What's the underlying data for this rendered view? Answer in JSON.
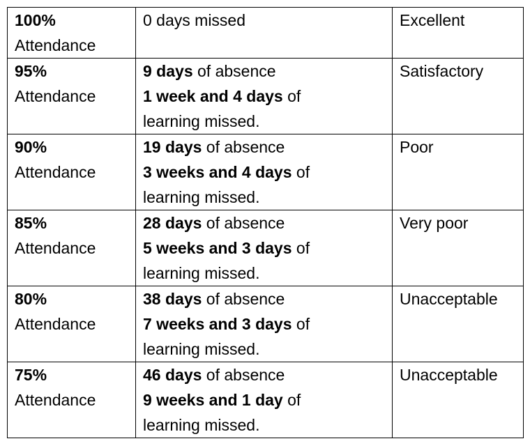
{
  "rows": [
    {
      "percent": "100%",
      "label": "Attendance",
      "days_text": "0 days missed",
      "rating": "Excellent"
    },
    {
      "percent": "95%",
      "label": "Attendance",
      "days_bold": "9 days",
      "days_rest": " of absence",
      "weeks_bold": "1 week and 4 days",
      "weeks_rest": " of",
      "tail": "learning missed.",
      "rating": "Satisfactory"
    },
    {
      "percent": "90%",
      "label": "Attendance",
      "days_bold": "19 days",
      "days_rest": " of absence",
      "weeks_bold": "3 weeks and 4 days",
      "weeks_rest": " of",
      "tail": "learning missed.",
      "rating": "Poor"
    },
    {
      "percent": "85%",
      "label": "Attendance",
      "days_bold": "28 days",
      "days_rest": " of absence",
      "weeks_bold": "5 weeks and 3 days",
      "weeks_rest": " of",
      "tail": "learning missed.",
      "rating": "Very poor"
    },
    {
      "percent": "80%",
      "label": "Attendance",
      "days_bold": "38 days",
      "days_rest": " of absence",
      "weeks_bold": "7 weeks and 3 days",
      "weeks_rest": " of",
      "tail": "learning missed.",
      "rating": "Unacceptable"
    },
    {
      "percent": "75%",
      "label": "Attendance",
      "days_bold": "46 days",
      "days_rest": " of absence",
      "weeks_bold": "9 weeks and 1 day",
      "weeks_rest": " of",
      "tail": "learning missed.",
      "rating": "Unacceptable"
    }
  ]
}
